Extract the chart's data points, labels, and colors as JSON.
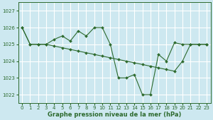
{
  "xlabel": "Graphe pression niveau de la mer (hPa)",
  "bg_color": "#cde8f0",
  "grid_color": "#ffffff",
  "line_color": "#2d6a2d",
  "marker_color": "#2d6a2d",
  "x_ticks": [
    0,
    1,
    2,
    3,
    4,
    5,
    6,
    7,
    8,
    9,
    10,
    11,
    12,
    13,
    14,
    15,
    16,
    17,
    18,
    19,
    20,
    21,
    22,
    23
  ],
  "ylim": [
    1021.5,
    1027.5
  ],
  "xlim": [
    -0.5,
    23.5
  ],
  "yticks": [
    1022,
    1023,
    1024,
    1025,
    1026,
    1027
  ],
  "series1_x": [
    0,
    1,
    2,
    3,
    4,
    5,
    6,
    7,
    8,
    9,
    10,
    11,
    12,
    13,
    14,
    15,
    16,
    17,
    18,
    19,
    20,
    21,
    22,
    23
  ],
  "series1_y": [
    1026,
    1025,
    1025,
    1025,
    1025.3,
    1025.5,
    1025.2,
    1025.8,
    1025.5,
    1026.0,
    1026.0,
    1025.0,
    1023.0,
    1023.0,
    1023.2,
    1022.0,
    1022.0,
    1024.4,
    1024.0,
    1025.1,
    1025.0,
    1025.0,
    1025.0,
    1025.0
  ],
  "series2_x": [
    0,
    1,
    2,
    3,
    4,
    5,
    6,
    7,
    8,
    9,
    10,
    11,
    12,
    13,
    14,
    15,
    16,
    17,
    18,
    19,
    20,
    21,
    22,
    23
  ],
  "series2_y": [
    1026,
    1025,
    1025,
    1025,
    1024.9,
    1024.8,
    1024.7,
    1024.6,
    1024.5,
    1024.4,
    1024.3,
    1024.2,
    1024.1,
    1024.0,
    1023.9,
    1023.8,
    1023.7,
    1023.6,
    1023.5,
    1023.4,
    1024.0,
    1025.0,
    1025.0,
    1025.0
  ],
  "xlabel_fontsize": 6,
  "tick_fontsize": 5
}
